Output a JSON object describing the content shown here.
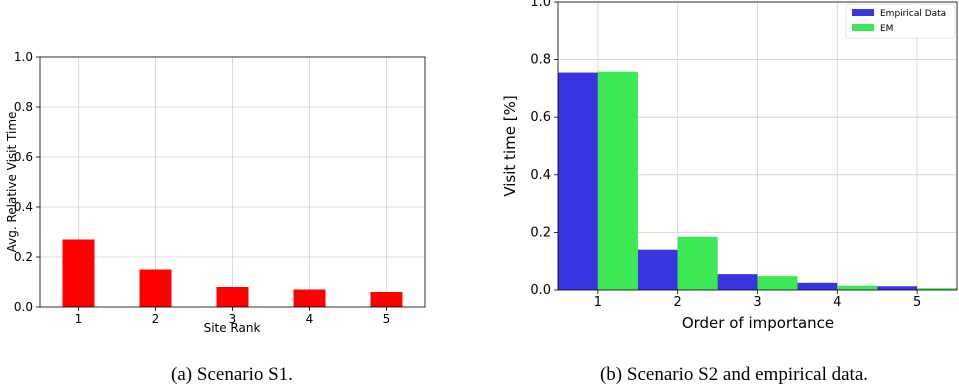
{
  "chart_data": [
    {
      "type": "bar",
      "caption": "(a)  Scenario S1.",
      "xlabel": "Site Rank",
      "ylabel": "Avg. Relative Visit Time",
      "categories": [
        "1",
        "2",
        "3",
        "4",
        "5"
      ],
      "values": [
        0.27,
        0.15,
        0.08,
        0.07,
        0.06
      ],
      "ylim": [
        0,
        1.0
      ],
      "yticks": [
        "0.0",
        "0.2",
        "0.4",
        "0.6",
        "0.8",
        "1.0"
      ],
      "grid": true,
      "colors": [
        "#ff0000"
      ]
    },
    {
      "type": "bar",
      "caption": "(b)  Scenario S2 and empirical data.",
      "xlabel": "Order of importance",
      "ylabel": "Visit time [%]",
      "categories": [
        "1",
        "2",
        "3",
        "4",
        "5"
      ],
      "series": [
        {
          "name": "Empirical Data",
          "values": [
            0.755,
            0.14,
            0.055,
            0.025,
            0.013
          ],
          "color": "#3a34e0"
        },
        {
          "name": "EM",
          "values": [
            0.758,
            0.185,
            0.048,
            0.015,
            0.006
          ],
          "color": "#3de855"
        }
      ],
      "ylim": [
        0,
        1.0
      ],
      "yticks": [
        "0.0",
        "0.2",
        "0.4",
        "0.6",
        "0.8",
        "1.0"
      ],
      "grid": true,
      "legend": "top-right"
    }
  ]
}
